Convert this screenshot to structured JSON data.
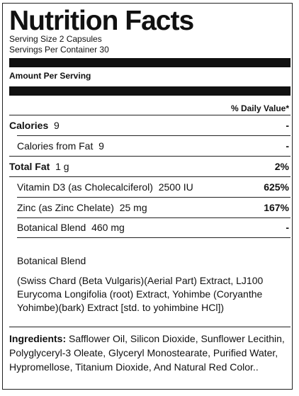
{
  "label": {
    "title": "Nutrition Facts",
    "serving_size": "Serving Size 2 Capsules",
    "servings_per_container": "Servings Per Container 30",
    "amount_per_serving": "Amount Per Serving",
    "daily_value_header": "% Daily Value*"
  },
  "rows": {
    "calories": {
      "name": "Calories",
      "amount": "9",
      "dv": "-"
    },
    "calories_from_fat": {
      "name": "Calories from Fat",
      "amount": "9",
      "dv": "-"
    },
    "total_fat": {
      "name": "Total Fat",
      "amount": "1 g",
      "dv": "2%"
    },
    "vitamin_d3": {
      "name": "Vitamin D3 (as Cholecalciferol)",
      "amount": "2500 IU",
      "dv": "625%"
    },
    "zinc": {
      "name": "Zinc (as Zinc Chelate)",
      "amount": "25 mg",
      "dv": "167%"
    },
    "botanical_blend": {
      "name": "Botanical Blend",
      "amount": "460 mg",
      "dv": "-"
    }
  },
  "blend": {
    "title": "Botanical Blend",
    "description": "(Swiss Chard (Beta Vulgaris)(Aerial Part) Extract, LJ100 Eurycoma Longifolia (root) Extract, Yohimbe (Coryanthe Yohimbe)(bark) Extract [std. to yohimbine HCl])"
  },
  "ingredients": {
    "label": "Ingredients:",
    "text": "Safflower Oil, Silicon Dioxide, Sunflower Lecithin, Polyglyceryl-3 Oleate, Glyceryl Monostearate, Purified Water, Hypromellose, Titanium Dioxide, And Natural Red Color.."
  }
}
